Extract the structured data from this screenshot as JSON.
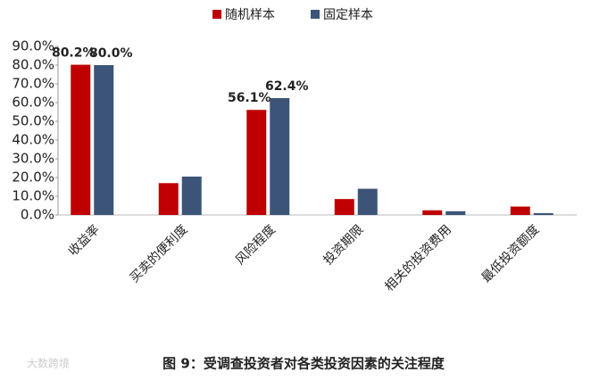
{
  "chart_data": {
    "type": "bar",
    "caption": "图 9：受调查投资者对各类投资因素的关注程度",
    "watermark": "大数跨境",
    "categories": [
      "收益率",
      "买卖的便利度",
      "风险程度",
      "投资期限",
      "相关的投资费用",
      "最低投资额度"
    ],
    "series": [
      {
        "name": "随机样本",
        "color": "#c00000",
        "values": [
          80.2,
          17,
          56.1,
          8.5,
          2.5,
          4.5
        ],
        "value_labels": [
          "80.2%",
          null,
          "56.1%",
          null,
          null,
          null
        ]
      },
      {
        "name": "固定样本",
        "color": "#3b5478",
        "values": [
          80.0,
          20.5,
          62.4,
          14,
          2,
          1
        ],
        "value_labels": [
          "80.0%",
          null,
          "62.4%",
          null,
          null,
          null
        ]
      }
    ],
    "ylim": [
      0,
      90
    ],
    "yticks": [
      {
        "value": 0,
        "label": "0.0%"
      },
      {
        "value": 10,
        "label": "10.0%"
      },
      {
        "value": 20,
        "label": "20.0%"
      },
      {
        "value": 30,
        "label": "30.0%"
      },
      {
        "value": 40,
        "label": "40.0%"
      },
      {
        "value": 50,
        "label": "50.0%"
      },
      {
        "value": 60,
        "label": "60.0%"
      },
      {
        "value": 70,
        "label": "70.0%"
      },
      {
        "value": 80,
        "label": "80.0%"
      },
      {
        "value": 90,
        "label": "90.0%"
      }
    ],
    "legend": "top"
  }
}
